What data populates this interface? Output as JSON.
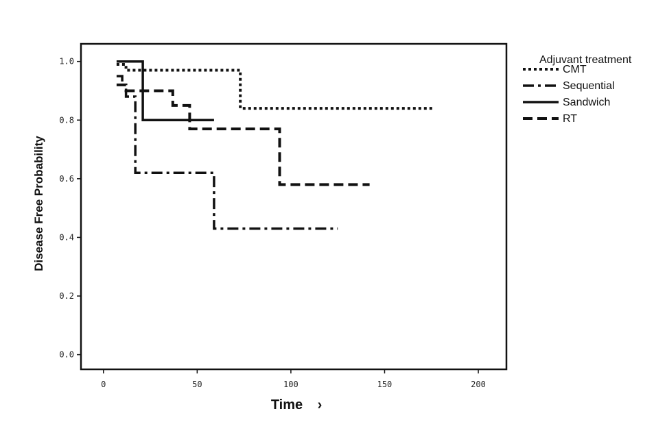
{
  "chart_data": {
    "type": "line",
    "subtype": "step (Kaplan-Meier)",
    "xlabel": "Time",
    "xlabel_suffix": "›",
    "ylabel": "Disease Free Probability",
    "xlim": [
      -12,
      215
    ],
    "ylim": [
      -0.05,
      1.06
    ],
    "x_ticks": [
      0,
      50,
      100,
      150,
      200
    ],
    "y_ticks": [
      0.0,
      0.2,
      0.4,
      0.6,
      0.8,
      1.0
    ],
    "x_tick_labels": [
      "0",
      "50",
      "100",
      "150",
      "200"
    ],
    "y_tick_labels": [
      "0.0",
      "0.2",
      "0.4",
      "0.6",
      "0.8",
      "1.0"
    ],
    "grid": false,
    "legend_title": "Adjuvant treatment",
    "legend_position": "top-right, outside plot",
    "series": [
      {
        "name": "CMT",
        "style": "dotted",
        "color": "#111111",
        "points": [
          [
            7,
            0.99
          ],
          [
            12,
            0.99
          ],
          [
            12,
            0.97
          ],
          [
            73,
            0.97
          ],
          [
            73,
            0.84
          ],
          [
            176,
            0.84
          ]
        ]
      },
      {
        "name": "Sequential",
        "style": "dash-dot",
        "color": "#111111",
        "points": [
          [
            7,
            0.95
          ],
          [
            10,
            0.95
          ],
          [
            10,
            0.92
          ],
          [
            12,
            0.92
          ],
          [
            12,
            0.88
          ],
          [
            17,
            0.88
          ],
          [
            17,
            0.62
          ],
          [
            59,
            0.62
          ],
          [
            59,
            0.43
          ],
          [
            125,
            0.43
          ]
        ]
      },
      {
        "name": "Sandwich",
        "style": "solid",
        "color": "#111111",
        "points": [
          [
            7,
            1.0
          ],
          [
            21,
            1.0
          ],
          [
            21,
            0.8
          ],
          [
            59,
            0.8
          ]
        ]
      },
      {
        "name": "RT",
        "style": "dashed",
        "color": "#111111",
        "points": [
          [
            7,
            0.92
          ],
          [
            12,
            0.92
          ],
          [
            12,
            0.9
          ],
          [
            37,
            0.9
          ],
          [
            37,
            0.85
          ],
          [
            46,
            0.85
          ],
          [
            46,
            0.77
          ],
          [
            94,
            0.77
          ],
          [
            94,
            0.58
          ],
          [
            142,
            0.58
          ]
        ]
      }
    ]
  }
}
